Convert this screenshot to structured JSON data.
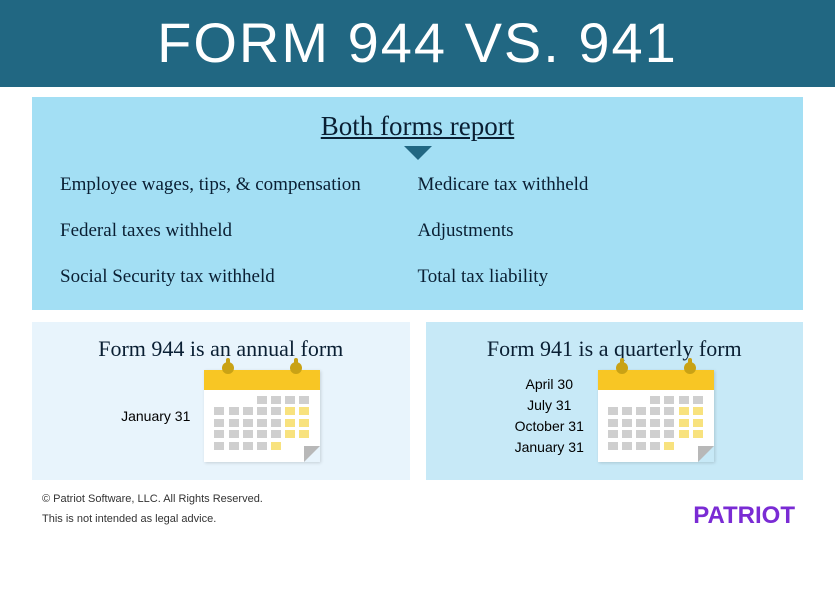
{
  "colors": {
    "header_bg": "#216782",
    "header_text": "#ffffff",
    "section_bg": "#a3dff4",
    "section_heading_color": "#0a1f33",
    "arrow_color": "#216782",
    "item_text": "#0a1f33",
    "card944_bg": "#e8f4fc",
    "card941_bg": "#c7e9f7",
    "calendar_top": "#f8c624",
    "calendar_ring": "#c9a215",
    "cell_gray": "#cfcfcf",
    "cell_yellow": "#f8e27e",
    "footer_text": "#333333",
    "brand_color": "#7a2bd4"
  },
  "header": {
    "title": "FORM 944 VS. 941",
    "fontsize": 56
  },
  "section_both": {
    "heading": "Both forms report",
    "heading_fontsize": 27,
    "item_fontsize": 19,
    "items_left": [
      "Employee wages, tips, & compensation",
      "Federal taxes withheld",
      "Social Security tax withheld"
    ],
    "items_right": [
      "Medicare tax withheld",
      "Adjustments",
      "Total tax liability"
    ]
  },
  "form944": {
    "title": "Form 944 is an annual form",
    "title_fontsize": 22,
    "dates": [
      "January 31"
    ],
    "date_fontsize": 14
  },
  "form941": {
    "title": "Form 941 is a quarterly form",
    "title_fontsize": 22,
    "dates": [
      "April 30",
      "July 31",
      "October 31",
      "January 31"
    ],
    "date_fontsize": 14
  },
  "footer": {
    "copyright": "© Patriot Software, LLC. All Rights Reserved.",
    "disclaimer": "This is not intended as legal advice.",
    "brand": "PATRIOT",
    "footer_fontsize": 11,
    "brand_fontsize": 24
  }
}
